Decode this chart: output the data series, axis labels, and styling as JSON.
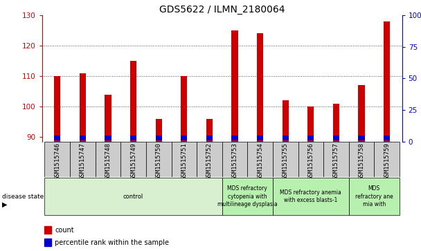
{
  "title": "GDS5622 / ILMN_2180064",
  "samples": [
    "GSM1515746",
    "GSM1515747",
    "GSM1515748",
    "GSM1515749",
    "GSM1515750",
    "GSM1515751",
    "GSM1515752",
    "GSM1515753",
    "GSM1515754",
    "GSM1515755",
    "GSM1515756",
    "GSM1515757",
    "GSM1515758",
    "GSM1515759"
  ],
  "count_values": [
    110,
    111,
    104,
    115,
    96,
    110,
    96,
    125,
    124,
    102,
    100,
    101,
    107,
    128
  ],
  "percentile_values": [
    3,
    4,
    4,
    5,
    2,
    3,
    2,
    5,
    5,
    3,
    2,
    2,
    3,
    5
  ],
  "percentile_scale": [
    0,
    25,
    50,
    75,
    100
  ],
  "ymin": 88,
  "ymax": 130,
  "yticks": [
    90,
    100,
    110,
    120,
    130
  ],
  "bar_width": 0.25,
  "count_color": "#cc0000",
  "percentile_color": "#0000cc",
  "grid_color": "#555555",
  "plot_bg": "#ffffff",
  "tick_bg": "#cccccc",
  "disease_groups": [
    {
      "label": "control",
      "start": 0,
      "end": 7,
      "color": "#d8f0d0"
    },
    {
      "label": "MDS refractory\ncytopenia with\nmultilineage dysplasia",
      "start": 7,
      "end": 9,
      "color": "#b8f0b0"
    },
    {
      "label": "MDS refractory anemia\nwith excess blasts-1",
      "start": 9,
      "end": 12,
      "color": "#b8f0b0"
    },
    {
      "label": "MDS\nrefractory ane\nmia with",
      "start": 12,
      "end": 14,
      "color": "#b8f0b0"
    }
  ],
  "title_fontsize": 10,
  "tick_fontsize": 7.5,
  "sample_fontsize": 6.5
}
